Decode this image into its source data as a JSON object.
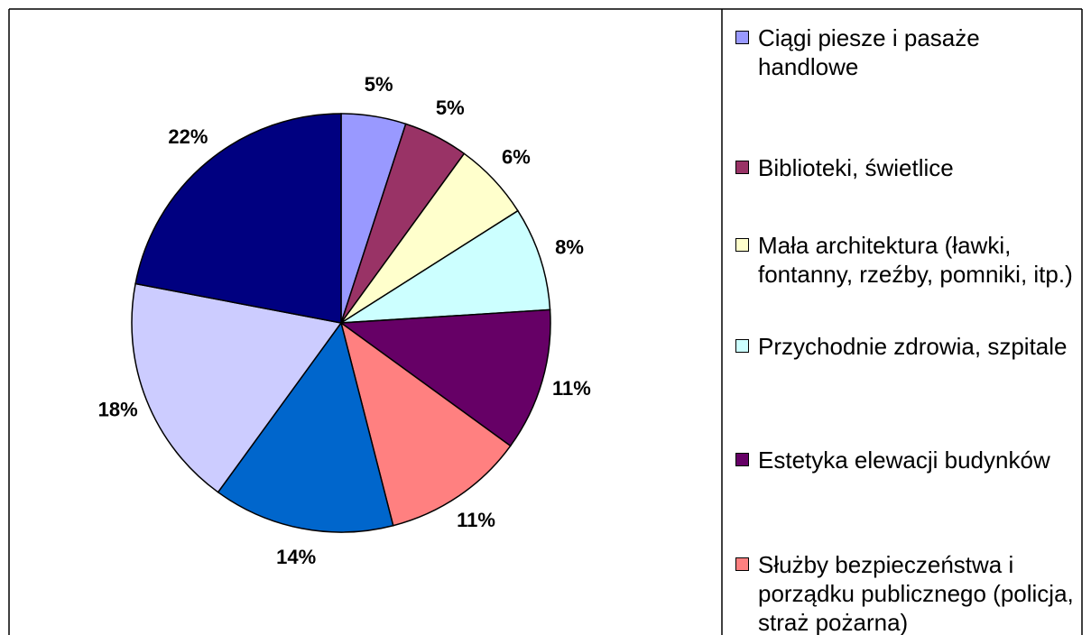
{
  "chart_data": {
    "type": "pie",
    "categories": [
      "Ciągi piesze i pasaże handlowe",
      "Biblioteki, świetlice",
      "Mała architektura (ławki, fontanny, rzeźby, pomniki, itp.)",
      "Przychodnie zdrowia, szpitale",
      "Estetyka elewacji budynków",
      "Służby bezpieczeństwa i porządku publicznego (policja, straż pożarna)",
      null,
      null,
      null
    ],
    "values": [
      5,
      5,
      6,
      8,
      11,
      11,
      14,
      18,
      22
    ],
    "value_labels": [
      "5%",
      "5%",
      "6%",
      "8%",
      "11%",
      "11%",
      "14%",
      "18%",
      "22%"
    ],
    "colors": [
      "#9999ff",
      "#993366",
      "#ffffcc",
      "#ccffff",
      "#660066",
      "#ff8080",
      "#0066cc",
      "#ccccff",
      "#000080"
    ]
  }
}
